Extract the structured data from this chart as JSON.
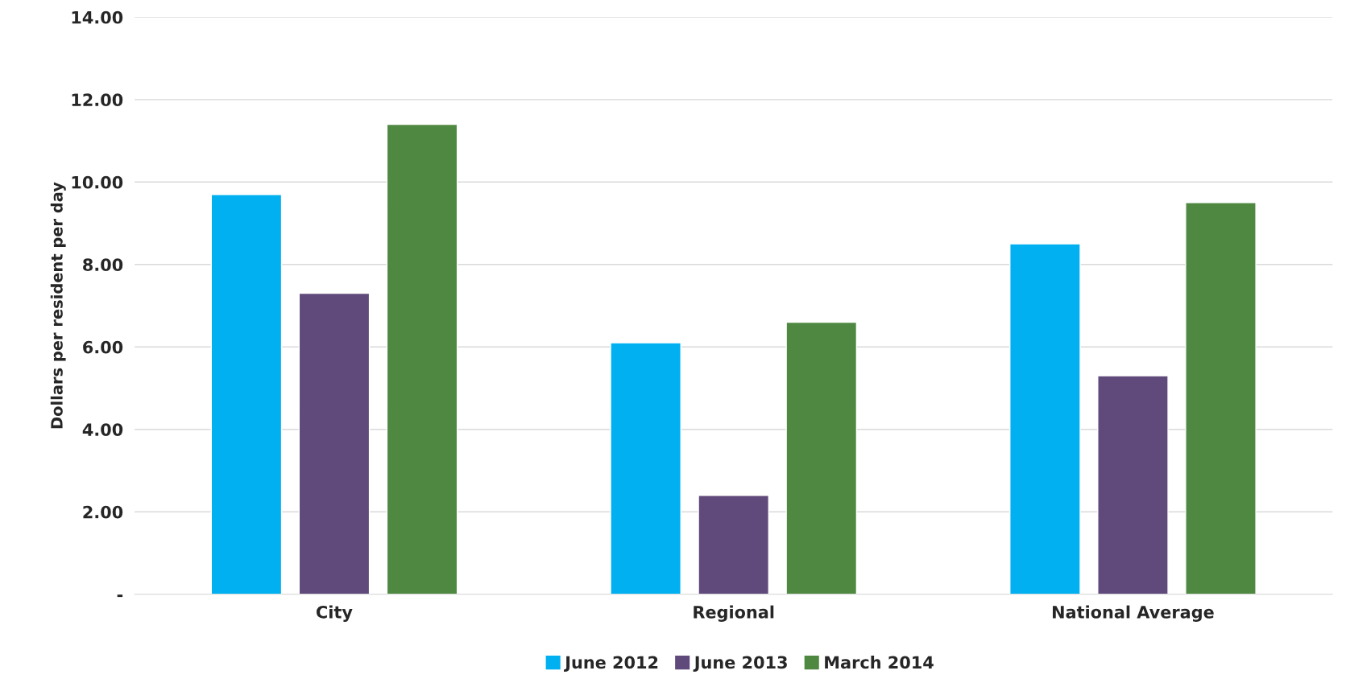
{
  "chart_data": {
    "type": "bar",
    "ylabel": "Dollars per resident per day",
    "categories": [
      "City",
      "Regional",
      "National Average"
    ],
    "series": [
      {
        "name": "June 2012",
        "color": "#00b0f0",
        "values": [
          9.7,
          6.1,
          8.5
        ]
      },
      {
        "name": "June 2013",
        "color": "#604a7b",
        "values": [
          7.3,
          2.4,
          5.3
        ]
      },
      {
        "name": "March 2014",
        "color": "#4f8841",
        "values": [
          11.4,
          6.6,
          9.5
        ]
      }
    ],
    "ylim": [
      0,
      14
    ],
    "yticks": [
      {
        "value": 0,
        "label": "-"
      },
      {
        "value": 2,
        "label": "2.00"
      },
      {
        "value": 4,
        "label": "4.00"
      },
      {
        "value": 6,
        "label": "6.00"
      },
      {
        "value": 8,
        "label": "8.00"
      },
      {
        "value": 10,
        "label": "10.00"
      },
      {
        "value": 12,
        "label": "12.00"
      },
      {
        "value": 14,
        "label": "14.00"
      }
    ],
    "grid": "y",
    "legend": "bottom"
  }
}
